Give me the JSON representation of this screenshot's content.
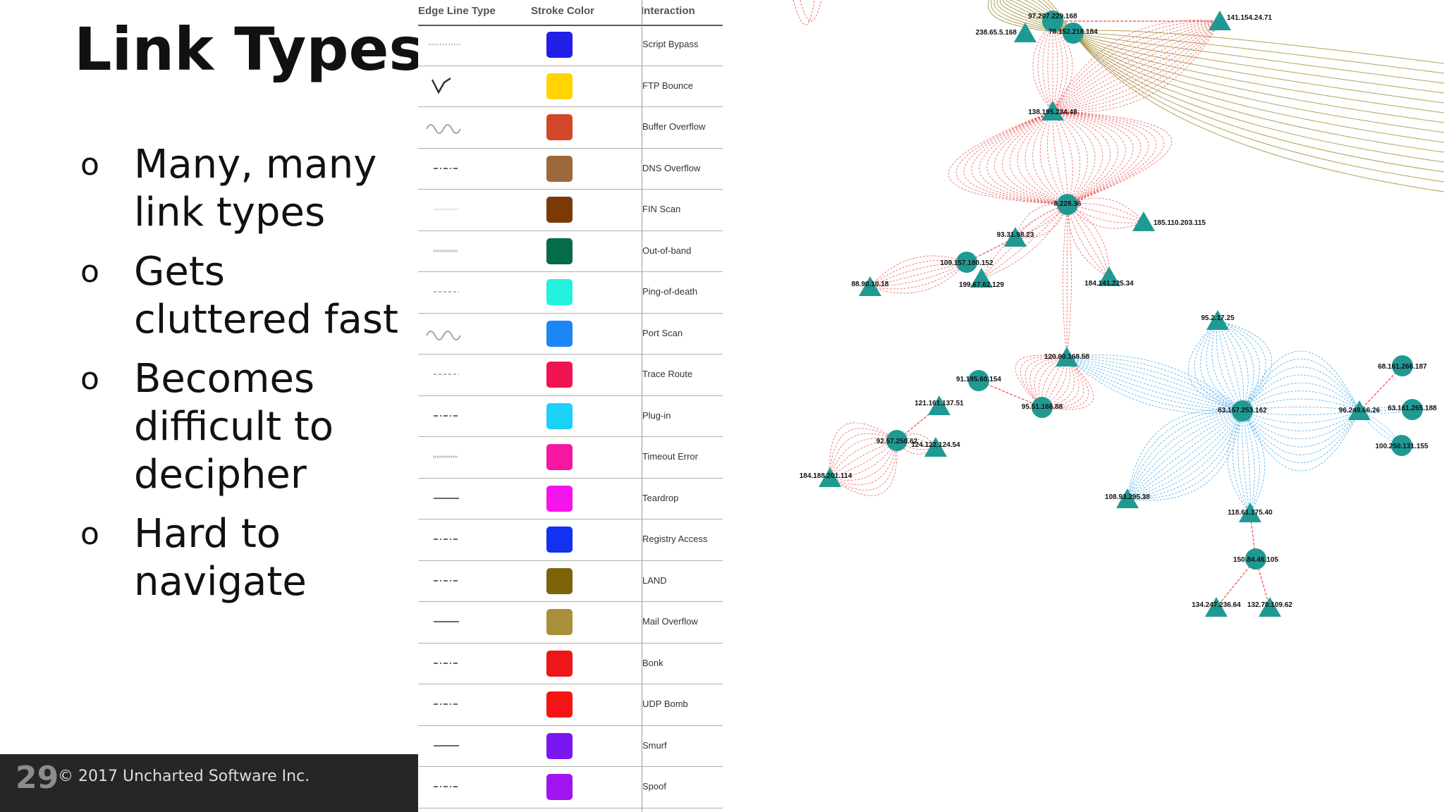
{
  "slide": {
    "title": "Link Types",
    "bullet_marker": "o",
    "bullets": [
      "Many, many link types",
      "Gets cluttered fast",
      "Becomes difficult to decipher",
      "Hard to navigate"
    ],
    "footer": {
      "page_number": "29",
      "copyright": "© 2017 Uncharted Software Inc."
    }
  },
  "legend": {
    "headers": [
      "Edge Line Type",
      "Stroke Color",
      "Interaction"
    ],
    "rows": [
      {
        "style": "dotted",
        "color": "#1f1fe8",
        "label": "Script Bypass"
      },
      {
        "style": "zigzag",
        "color": "#ffd400",
        "label": "FTP Bounce"
      },
      {
        "style": "wave",
        "color": "#d2472c",
        "label": "Buffer Overflow"
      },
      {
        "style": "dashdot",
        "color": "#9b6a3c",
        "label": "DNS Overflow"
      },
      {
        "style": "thin",
        "color": "#7a3a07",
        "label": "FIN Scan"
      },
      {
        "style": "hatched",
        "color": "#066b48",
        "label": "Out-of-band"
      },
      {
        "style": "dashed",
        "color": "#22f2de",
        "label": "Ping-of-death"
      },
      {
        "style": "wave",
        "color": "#1a87f5",
        "label": "Port Scan"
      },
      {
        "style": "dashed",
        "color": "#f0134f",
        "label": "Trace Route"
      },
      {
        "style": "dashdot",
        "color": "#1ad2f5",
        "label": "Plug-in"
      },
      {
        "style": "hatched",
        "color": "#f516a4",
        "label": "Timeout Error"
      },
      {
        "style": "solid",
        "color": "#f514eb",
        "label": "Teardrop"
      },
      {
        "style": "dashdot",
        "color": "#1231f0",
        "label": "Registry Access"
      },
      {
        "style": "dashdot",
        "color": "#7d6308",
        "label": "LAND"
      },
      {
        "style": "solid",
        "color": "#a8903a",
        "label": "Mail Overflow"
      },
      {
        "style": "dashdot",
        "color": "#ee1616",
        "label": "Bonk"
      },
      {
        "style": "dashdot",
        "color": "#f51414",
        "label": "UDP Bomb"
      },
      {
        "style": "solid",
        "color": "#7b16f0",
        "label": "Smurf"
      },
      {
        "style": "dashdot",
        "color": "#a114f0",
        "label": "Spoof"
      }
    ]
  },
  "graph": {
    "node_color": "#1f9a93",
    "edge_colors": {
      "red": "#e84a4a",
      "blue": "#49a9e6",
      "olive": "#9b8b2e"
    },
    "nodes": [
      {
        "label": "97.207.229.168"
      },
      {
        "label": "141.154.24.71"
      },
      {
        "label": "238.65.5.168"
      },
      {
        "label": "78.152.218.184"
      },
      {
        "label": "138.195.234.48"
      },
      {
        "label": "8.228.36"
      },
      {
        "label": "185.110.203.115"
      },
      {
        "label": "93.31.98.23"
      },
      {
        "label": "109.157.180.152"
      },
      {
        "label": "88.90.10.18"
      },
      {
        "label": "199.67.62.129"
      },
      {
        "label": "184.141.225.34"
      },
      {
        "label": "95.2.17.25"
      },
      {
        "label": "120.90.168.58"
      },
      {
        "label": "91.185.60.154"
      },
      {
        "label": "68.161.266.187"
      },
      {
        "label": "121.161.137.51"
      },
      {
        "label": "95.51.166.88"
      },
      {
        "label": "63.157.253.162"
      },
      {
        "label": "96.249.66.26"
      },
      {
        "label": "63.161.265.188"
      },
      {
        "label": "92.57.250.62"
      },
      {
        "label": "124.122.124.54"
      },
      {
        "label": "184.188.201.114"
      },
      {
        "label": "100.250.131.155"
      },
      {
        "label": "108.93.295.38"
      },
      {
        "label": "118.61.175.40"
      },
      {
        "label": "150.84.46.105"
      },
      {
        "label": "134.247.236.64"
      },
      {
        "label": "132.70.109.62"
      }
    ]
  }
}
